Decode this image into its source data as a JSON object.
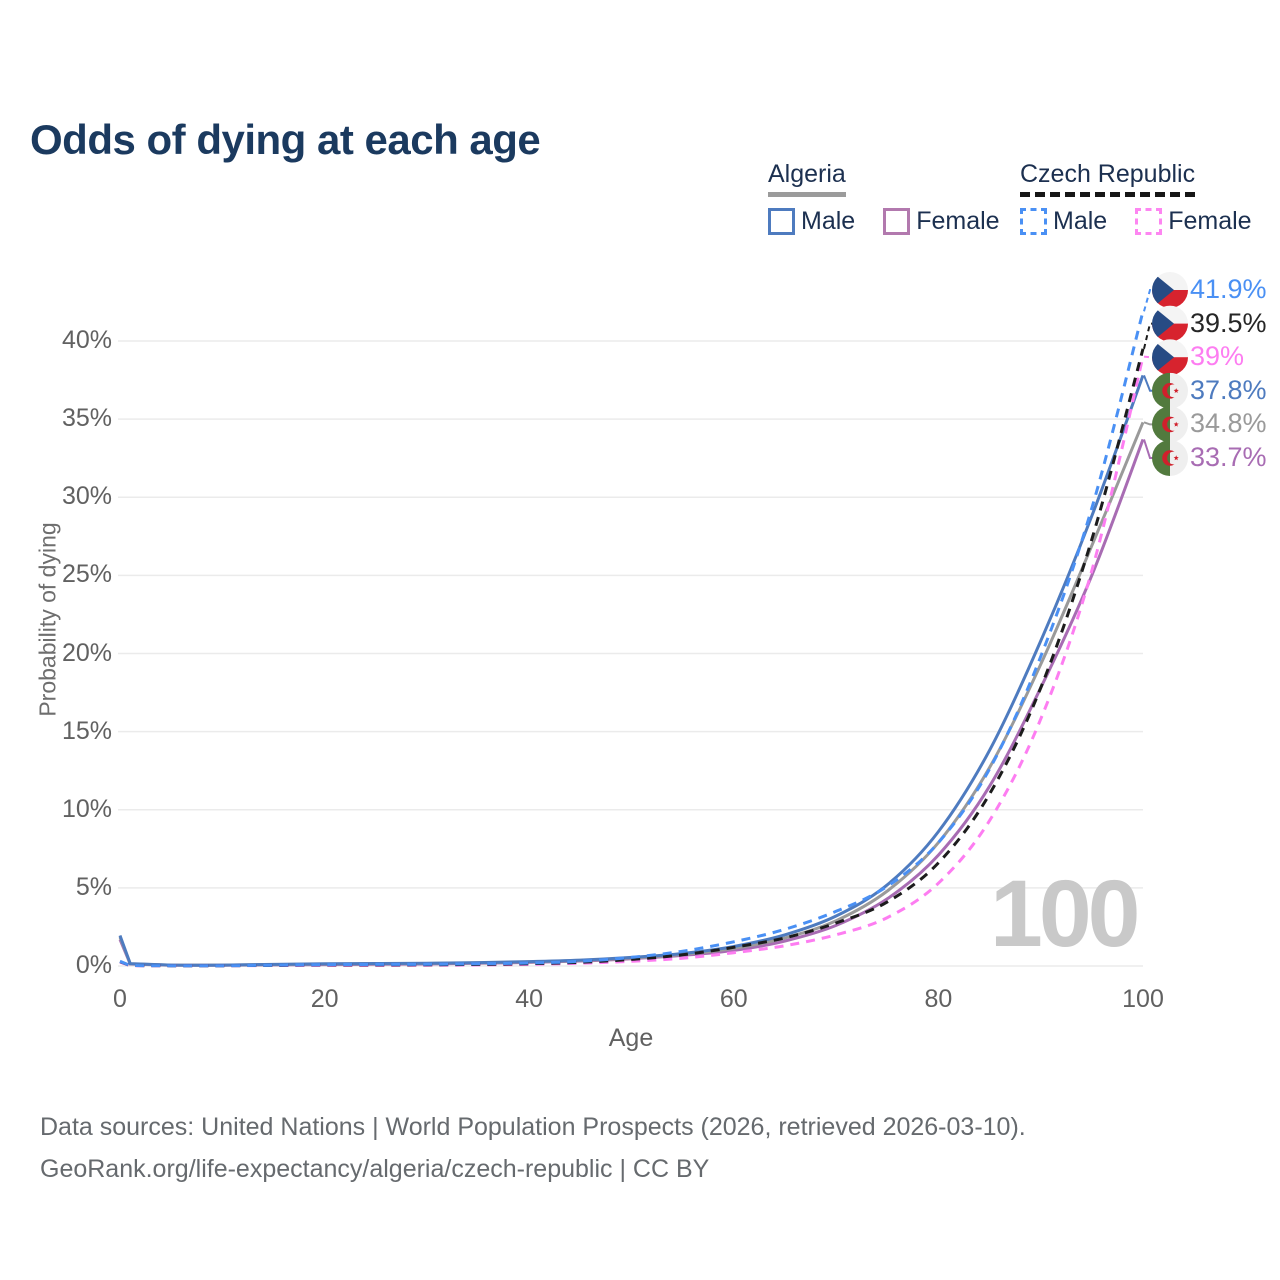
{
  "title": "Odds of dying at each age",
  "watermark": "100",
  "legend": {
    "groups": [
      {
        "label": "Algeria",
        "underline_style": "solid",
        "underline_color": "#9b9b9b",
        "items": [
          {
            "label": "Male",
            "color": "#4e7bbf",
            "dashed": false
          },
          {
            "label": "Female",
            "color": "#b279ae",
            "dashed": false
          }
        ]
      },
      {
        "label": "Czech Republic",
        "underline_style": "dashed",
        "underline_color": "#161616",
        "items": [
          {
            "label": "Male",
            "color": "#4a90f4",
            "dashed": true
          },
          {
            "label": "Female",
            "color": "#fd86f1",
            "dashed": true
          }
        ]
      }
    ]
  },
  "chart_data": {
    "type": "line",
    "title": "Odds of dying at each age",
    "xlabel": "Age",
    "ylabel": "Probability of dying",
    "x_tick_values": [
      0,
      20,
      40,
      60,
      80,
      100
    ],
    "x_tick_labels": [
      "0",
      "20",
      "40",
      "60",
      "80",
      "100"
    ],
    "y_tick_values": [
      0,
      5,
      10,
      15,
      20,
      25,
      30,
      35,
      40
    ],
    "y_tick_labels": [
      "0%",
      "5%",
      "10%",
      "15%",
      "20%",
      "25%",
      "30%",
      "35%",
      "40%"
    ],
    "xlim": [
      0,
      100
    ],
    "ylim": [
      0,
      40
    ],
    "grid": "horizontal",
    "legend_position": "top-right",
    "ages": [
      0,
      1,
      5,
      10,
      15,
      20,
      25,
      30,
      35,
      40,
      45,
      50,
      55,
      60,
      65,
      70,
      75,
      80,
      85,
      90,
      95,
      100
    ],
    "series": [
      {
        "id": "czech-male",
        "country": "Czech Republic",
        "sex": "Male",
        "color": "#4a90f4",
        "dashed": true,
        "flag": "cz",
        "end_label": "41.9%",
        "label_color": "#4a90f4",
        "values": [
          0.3,
          0.03,
          0.02,
          0.02,
          0.05,
          0.09,
          0.1,
          0.11,
          0.14,
          0.19,
          0.3,
          0.55,
          0.95,
          1.55,
          2.35,
          3.5,
          5.1,
          7.9,
          12.6,
          19.8,
          29.3,
          41.9
        ]
      },
      {
        "id": "czech-total",
        "country": "Czech Republic",
        "sex": "All",
        "color": "#1c1c1c",
        "dashed": true,
        "flag": "cz",
        "end_label": "39.5%",
        "label_color": "#262626",
        "values": [
          0.28,
          0.03,
          0.02,
          0.02,
          0.04,
          0.07,
          0.07,
          0.08,
          0.1,
          0.15,
          0.24,
          0.42,
          0.72,
          1.2,
          1.8,
          2.75,
          4.1,
          6.6,
          11.0,
          17.8,
          27.3,
          39.5
        ]
      },
      {
        "id": "czech-female",
        "country": "Czech Republic",
        "sex": "Female",
        "color": "#fd7df1",
        "dashed": true,
        "flag": "cz",
        "end_label": "39%",
        "label_color": "#fd7df1",
        "values": [
          0.25,
          0.02,
          0.02,
          0.02,
          0.03,
          0.04,
          0.04,
          0.05,
          0.07,
          0.11,
          0.18,
          0.3,
          0.5,
          0.85,
          1.3,
          2.0,
          3.1,
          5.3,
          9.3,
          15.8,
          25.3,
          39.0
        ]
      },
      {
        "id": "algeria-male",
        "country": "Algeria",
        "sex": "Male",
        "color": "#4e7bbf",
        "dashed": false,
        "flag": "dz",
        "end_label": "37.8%",
        "label_color": "#4e7bbf",
        "values": [
          1.95,
          0.15,
          0.06,
          0.06,
          0.1,
          0.14,
          0.16,
          0.18,
          0.22,
          0.28,
          0.38,
          0.55,
          0.8,
          1.25,
          2.0,
          3.2,
          5.2,
          8.6,
          13.8,
          20.8,
          28.8,
          37.8
        ]
      },
      {
        "id": "algeria-total",
        "country": "Algeria",
        "sex": "All",
        "color": "#9a9a9a",
        "dashed": false,
        "flag": "dz",
        "end_label": "34.8%",
        "label_color": "#9a9a9a",
        "values": [
          1.85,
          0.14,
          0.06,
          0.06,
          0.09,
          0.12,
          0.14,
          0.16,
          0.2,
          0.26,
          0.35,
          0.51,
          0.74,
          1.13,
          1.8,
          2.9,
          4.8,
          7.9,
          12.7,
          19.3,
          26.9,
          34.8
        ]
      },
      {
        "id": "algeria-female",
        "country": "Algeria",
        "sex": "Female",
        "color": "#a86cb3",
        "dashed": false,
        "flag": "dz",
        "end_label": "33.7%",
        "label_color": "#a86cb3",
        "values": [
          1.7,
          0.13,
          0.05,
          0.05,
          0.07,
          0.09,
          0.11,
          0.13,
          0.17,
          0.23,
          0.32,
          0.47,
          0.68,
          1.0,
          1.6,
          2.6,
          4.3,
          7.1,
          11.5,
          17.8,
          25.0,
          33.7
        ]
      }
    ],
    "flag_colors": {
      "cz_white": "#f4f4f4",
      "cz_red": "#d7232e",
      "cz_blue": "#274b84",
      "dz_green": "#527a3e",
      "dz_white": "#efefef",
      "dz_red": "#d0202c"
    }
  },
  "footer": {
    "line1": "Data sources: United Nations | World Population Prospects (2026, retrieved 2026-03-10).",
    "line2": "GeoRank.org/life-expectancy/algeria/czech-republic | CC BY"
  }
}
